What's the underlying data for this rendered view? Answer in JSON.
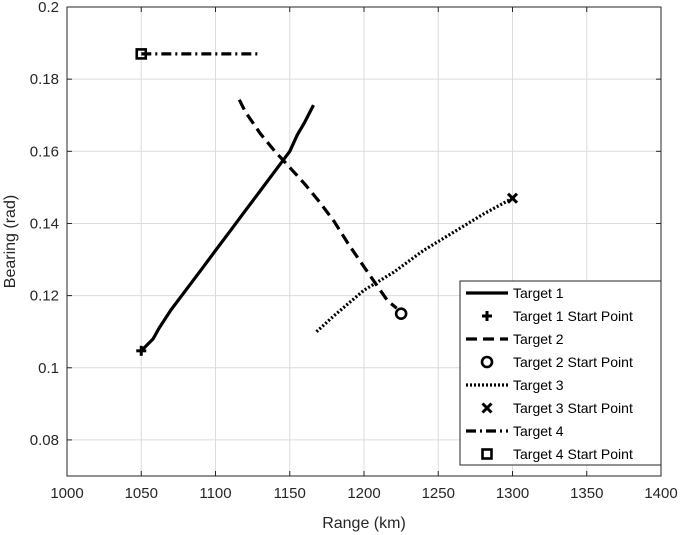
{
  "chart_data": {
    "type": "line",
    "xlabel": "Range (km)",
    "ylabel": "Bearing (rad)",
    "xlim": [
      1000,
      1400
    ],
    "ylim": [
      0.07,
      0.2
    ],
    "xticks": [
      1000,
      1050,
      1100,
      1150,
      1200,
      1250,
      1300,
      1350,
      1400
    ],
    "yticks": [
      0.08,
      0.1,
      0.12,
      0.14,
      0.16,
      0.18,
      0.2
    ],
    "xtick_labels": [
      "1000",
      "1050",
      "1100",
      "1150",
      "1200",
      "1250",
      "1300",
      "1350",
      "1400"
    ],
    "ytick_labels": [
      "0.08",
      "0.1",
      "0.12",
      "0.14",
      "0.16",
      "0.18",
      "0.2"
    ],
    "grid": true,
    "legend_position": "bottom-right",
    "series": [
      {
        "name": "Target 1",
        "style": "solid",
        "x": [
          1050,
          1058,
          1062,
          1070,
          1080,
          1090,
          1100,
          1110,
          1120,
          1130,
          1140,
          1150,
          1155,
          1160,
          1166
        ],
        "y": [
          0.1047,
          0.108,
          0.111,
          0.116,
          0.1215,
          0.127,
          0.1325,
          0.138,
          0.1435,
          0.149,
          0.1545,
          0.16,
          0.1645,
          0.168,
          0.1728
        ]
      },
      {
        "name": "Target 1 Start Point",
        "marker": "plus",
        "x": [
          1050
        ],
        "y": [
          0.1047
        ]
      },
      {
        "name": "Target 2",
        "style": "dashed",
        "x": [
          1116,
          1120,
          1125,
          1130,
          1140,
          1150,
          1160,
          1170,
          1180,
          1190,
          1200,
          1210,
          1216,
          1222
        ],
        "y": [
          0.1743,
          0.171,
          0.168,
          0.165,
          0.16,
          0.1555,
          0.151,
          0.146,
          0.1405,
          0.134,
          0.128,
          0.122,
          0.1185,
          0.1165
        ]
      },
      {
        "name": "Target 2 Start Point",
        "marker": "circle",
        "x": [
          1225
        ],
        "y": [
          0.115
        ]
      },
      {
        "name": "Target 3",
        "style": "dotted",
        "x": [
          1168,
          1180,
          1200,
          1220,
          1240,
          1260,
          1280,
          1300
        ],
        "y": [
          0.11,
          0.1145,
          0.1215,
          0.1265,
          0.1325,
          0.1375,
          0.1425,
          0.147
        ]
      },
      {
        "name": "Target 3 Start Point",
        "marker": "x",
        "x": [
          1300
        ],
        "y": [
          0.147
        ]
      },
      {
        "name": "Target 4",
        "style": "dashdot",
        "x": [
          1050,
          1130
        ],
        "y": [
          0.187,
          0.187
        ]
      },
      {
        "name": "Target 4 Start Point",
        "marker": "square",
        "x": [
          1050
        ],
        "y": [
          0.187
        ]
      }
    ]
  }
}
